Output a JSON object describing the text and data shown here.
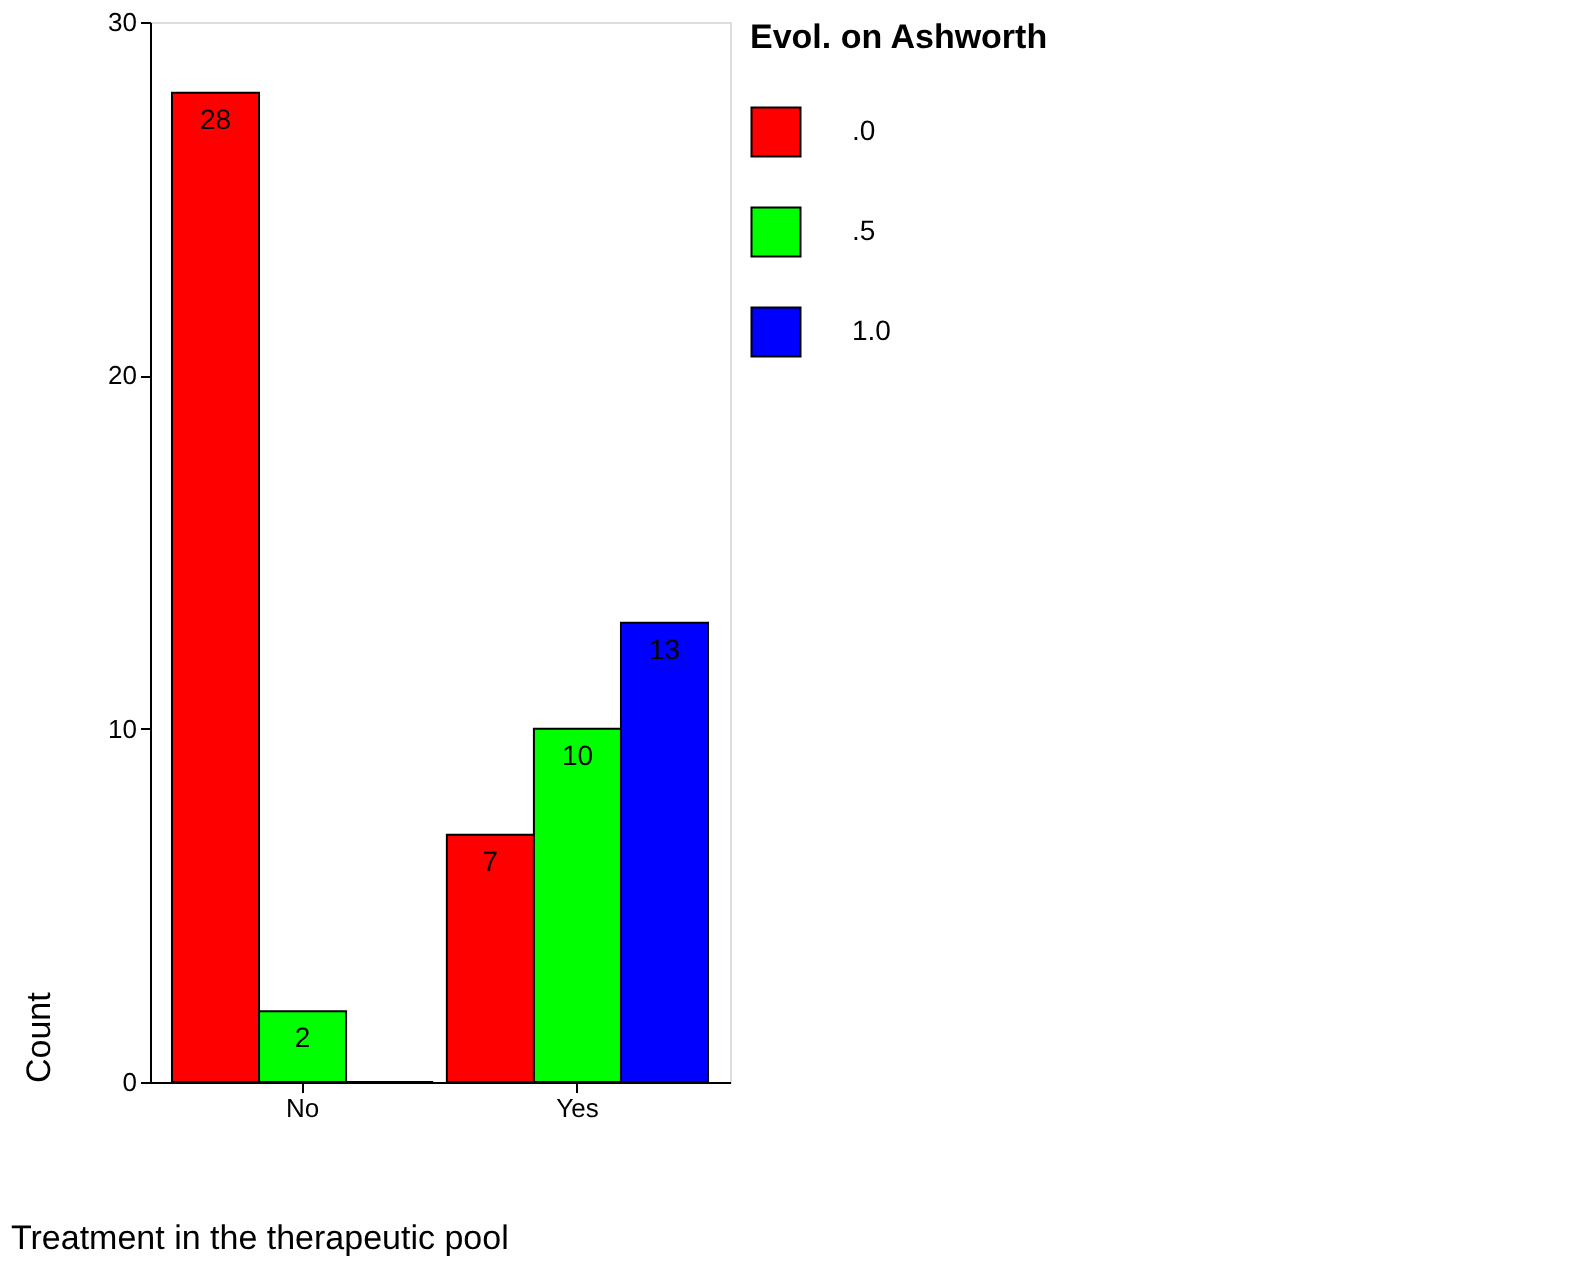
{
  "chart_data": {
    "type": "bar",
    "xlabel": "Treatment in the therapeutic pool",
    "ylabel": "Count",
    "legend_title": "Evol. on Ashworth",
    "categories": [
      "No",
      "Yes"
    ],
    "series": [
      {
        "name": ".0",
        "color": "#ff0000",
        "values": [
          28,
          7
        ],
        "value_labels": [
          "28",
          "7"
        ]
      },
      {
        "name": ".5",
        "color": "#00ff00",
        "values": [
          2,
          10
        ],
        "value_labels": [
          "2",
          "10"
        ]
      },
      {
        "name": "1.0",
        "color": "#0000ff",
        "values": [
          0,
          13
        ],
        "value_labels": [
          null,
          "13"
        ]
      }
    ],
    "ylim": [
      0,
      30
    ],
    "yticks": [
      0,
      10,
      20,
      30
    ],
    "grid": false,
    "legend": "right"
  }
}
